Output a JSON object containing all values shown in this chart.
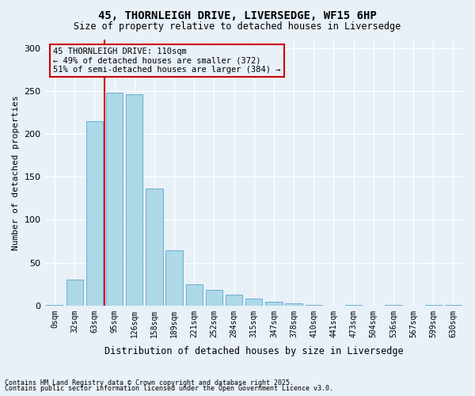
{
  "title1": "45, THORNLEIGH DRIVE, LIVERSEDGE, WF15 6HP",
  "title2": "Size of property relative to detached houses in Liversedge",
  "xlabel": "Distribution of detached houses by size in Liversedge",
  "ylabel": "Number of detached properties",
  "categories": [
    "0sqm",
    "32sqm",
    "63sqm",
    "95sqm",
    "126sqm",
    "158sqm",
    "189sqm",
    "221sqm",
    "252sqm",
    "284sqm",
    "315sqm",
    "347sqm",
    "378sqm",
    "410sqm",
    "441sqm",
    "473sqm",
    "504sqm",
    "536sqm",
    "567sqm",
    "599sqm",
    "630sqm"
  ],
  "values": [
    1,
    30,
    215,
    248,
    246,
    136,
    64,
    25,
    18,
    13,
    8,
    4,
    3,
    1,
    0,
    1,
    0,
    1,
    0,
    1,
    1
  ],
  "bar_color": "#add8e6",
  "bar_edge_color": "#6baed6",
  "background_color": "#e8f0f8",
  "grid_color": "#ffffff",
  "annotation_box_text": "45 THORNLEIGH DRIVE: 110sqm\n← 49% of detached houses are smaller (372)\n51% of semi-detached houses are larger (384) →",
  "annotation_box_color": "#cc0000",
  "vline_x_index": 3,
  "vline_color": "#cc0000",
  "ylim": [
    0,
    310
  ],
  "yticks": [
    0,
    50,
    100,
    150,
    200,
    250,
    300
  ],
  "footnote1": "Contains HM Land Registry data © Crown copyright and database right 2025.",
  "footnote2": "Contains public sector information licensed under the Open Government Licence v3.0."
}
